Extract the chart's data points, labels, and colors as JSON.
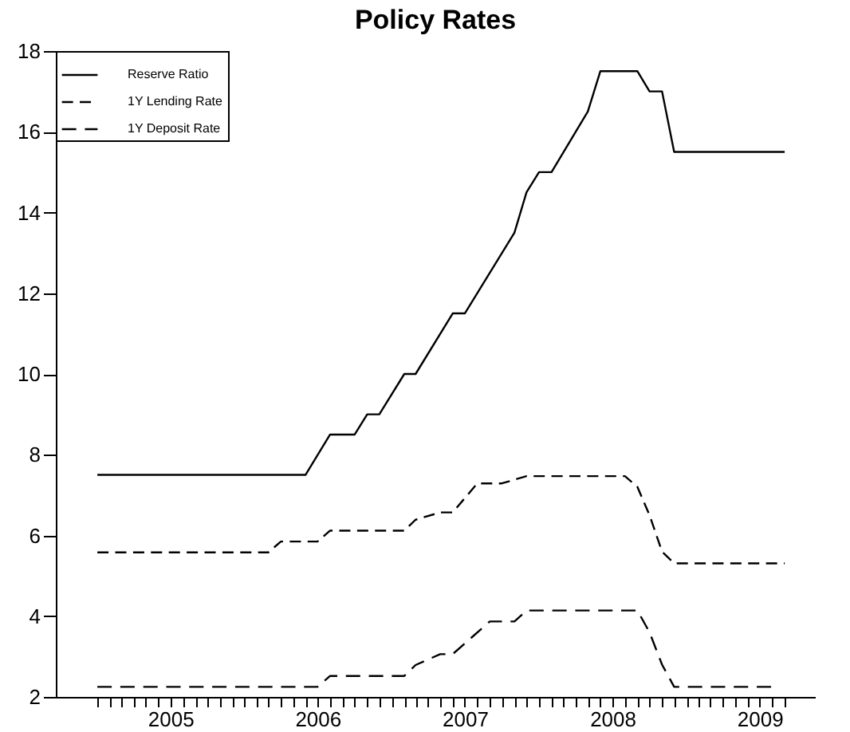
{
  "chart_data": {
    "type": "line",
    "title": "Policy Rates",
    "xlim": [
      "2004-09-20",
      "2009-11-15"
    ],
    "xticks": [
      {
        "value": "2005-01",
        "label": null
      },
      {
        "value": "2005-02",
        "label": null
      },
      {
        "value": "2005-03",
        "label": null
      },
      {
        "value": "2005-04",
        "label": null
      },
      {
        "value": "2005-05",
        "label": null
      },
      {
        "value": "2005-06",
        "label": null
      },
      {
        "value": "2005-07",
        "label": "2005"
      },
      {
        "value": "2005-08",
        "label": null
      },
      {
        "value": "2005-09",
        "label": null
      },
      {
        "value": "2005-10",
        "label": null
      },
      {
        "value": "2005-11",
        "label": null
      },
      {
        "value": "2005-12",
        "label": null
      },
      {
        "value": "2006-01",
        "label": null
      },
      {
        "value": "2006-02",
        "label": null
      },
      {
        "value": "2006-03",
        "label": null
      },
      {
        "value": "2006-04",
        "label": null
      },
      {
        "value": "2006-05",
        "label": null
      },
      {
        "value": "2006-06",
        "label": null
      },
      {
        "value": "2006-07",
        "label": "2006"
      },
      {
        "value": "2006-08",
        "label": null
      },
      {
        "value": "2006-09",
        "label": null
      },
      {
        "value": "2006-10",
        "label": null
      },
      {
        "value": "2006-11",
        "label": null
      },
      {
        "value": "2006-12",
        "label": null
      },
      {
        "value": "2007-01",
        "label": null
      },
      {
        "value": "2007-02",
        "label": null
      },
      {
        "value": "2007-03",
        "label": null
      },
      {
        "value": "2007-04",
        "label": null
      },
      {
        "value": "2007-05",
        "label": null
      },
      {
        "value": "2007-06",
        "label": null
      },
      {
        "value": "2007-07",
        "label": "2007"
      },
      {
        "value": "2007-08",
        "label": null
      },
      {
        "value": "2007-09",
        "label": null
      },
      {
        "value": "2007-10",
        "label": null
      },
      {
        "value": "2007-11",
        "label": null
      },
      {
        "value": "2007-12",
        "label": null
      },
      {
        "value": "2008-01",
        "label": null
      },
      {
        "value": "2008-02",
        "label": null
      },
      {
        "value": "2008-03",
        "label": null
      },
      {
        "value": "2008-04",
        "label": null
      },
      {
        "value": "2008-05",
        "label": null
      },
      {
        "value": "2008-06",
        "label": null
      },
      {
        "value": "2008-07",
        "label": "2008"
      },
      {
        "value": "2008-08",
        "label": null
      },
      {
        "value": "2008-09",
        "label": null
      },
      {
        "value": "2008-10",
        "label": null
      },
      {
        "value": "2008-11",
        "label": null
      },
      {
        "value": "2008-12",
        "label": null
      },
      {
        "value": "2009-01",
        "label": null
      },
      {
        "value": "2009-02",
        "label": null
      },
      {
        "value": "2009-03",
        "label": null
      },
      {
        "value": "2009-04",
        "label": null
      },
      {
        "value": "2009-05",
        "label": null
      },
      {
        "value": "2009-06",
        "label": null
      },
      {
        "value": "2009-07",
        "label": "2009"
      },
      {
        "value": "2009-08",
        "label": null
      },
      {
        "value": "2009-09",
        "label": null
      }
    ],
    "ylim": [
      2,
      18
    ],
    "yticks": [
      2,
      4,
      6,
      8,
      10,
      12,
      14,
      16,
      18
    ],
    "grid": false,
    "legend": "top left",
    "series": [
      {
        "name": "Reserve Ratio",
        "color": "#000000",
        "line_style": "solid",
        "x": [
          "2005-01",
          "2006-06",
          "2006-08",
          "2006-10",
          "2006-11",
          "2006-12",
          "2007-02",
          "2007-03",
          "2007-06",
          "2007-07",
          "2007-11",
          "2007-12",
          "2008-01",
          "2008-02",
          "2008-05",
          "2008-06",
          "2008-09",
          "2008-10",
          "2008-11",
          "2008-12",
          "2009-09"
        ],
        "values": [
          7.5,
          7.5,
          8.5,
          8.5,
          9.0,
          9.0,
          10.0,
          10.0,
          11.5,
          11.5,
          13.5,
          14.5,
          15.0,
          15.0,
          16.5,
          17.5,
          17.5,
          17.0,
          17.0,
          15.5,
          15.5
        ]
      },
      {
        "name": "1Y Lending Rate",
        "color": "#000000",
        "line_style": "dashed",
        "x": [
          "2005-01",
          "2006-03",
          "2006-04",
          "2006-07",
          "2006-08",
          "2007-02",
          "2007-03",
          "2007-05",
          "2007-06",
          "2007-08",
          "2007-10",
          "2007-12",
          "2008-08",
          "2008-09",
          "2008-10",
          "2008-11",
          "2008-12",
          "2009-09"
        ],
        "values": [
          5.58,
          5.58,
          5.85,
          5.85,
          6.12,
          6.12,
          6.39,
          6.57,
          6.57,
          7.29,
          7.29,
          7.47,
          7.47,
          7.2,
          6.5,
          5.6,
          5.31,
          5.31
        ]
      },
      {
        "name": "1Y Deposit Rate",
        "color": "#000000",
        "line_style": "dashed",
        "x": [
          "2005-01",
          "2006-07",
          "2006-08",
          "2007-02",
          "2007-03",
          "2007-05",
          "2007-06",
          "2007-09",
          "2007-11",
          "2007-12",
          "2008-09",
          "2008-10",
          "2008-11",
          "2008-12",
          "2009-08"
        ],
        "values": [
          2.25,
          2.25,
          2.52,
          2.52,
          2.79,
          3.06,
          3.06,
          3.87,
          3.87,
          4.14,
          4.14,
          3.6,
          2.8,
          2.25,
          2.25
        ]
      }
    ]
  }
}
